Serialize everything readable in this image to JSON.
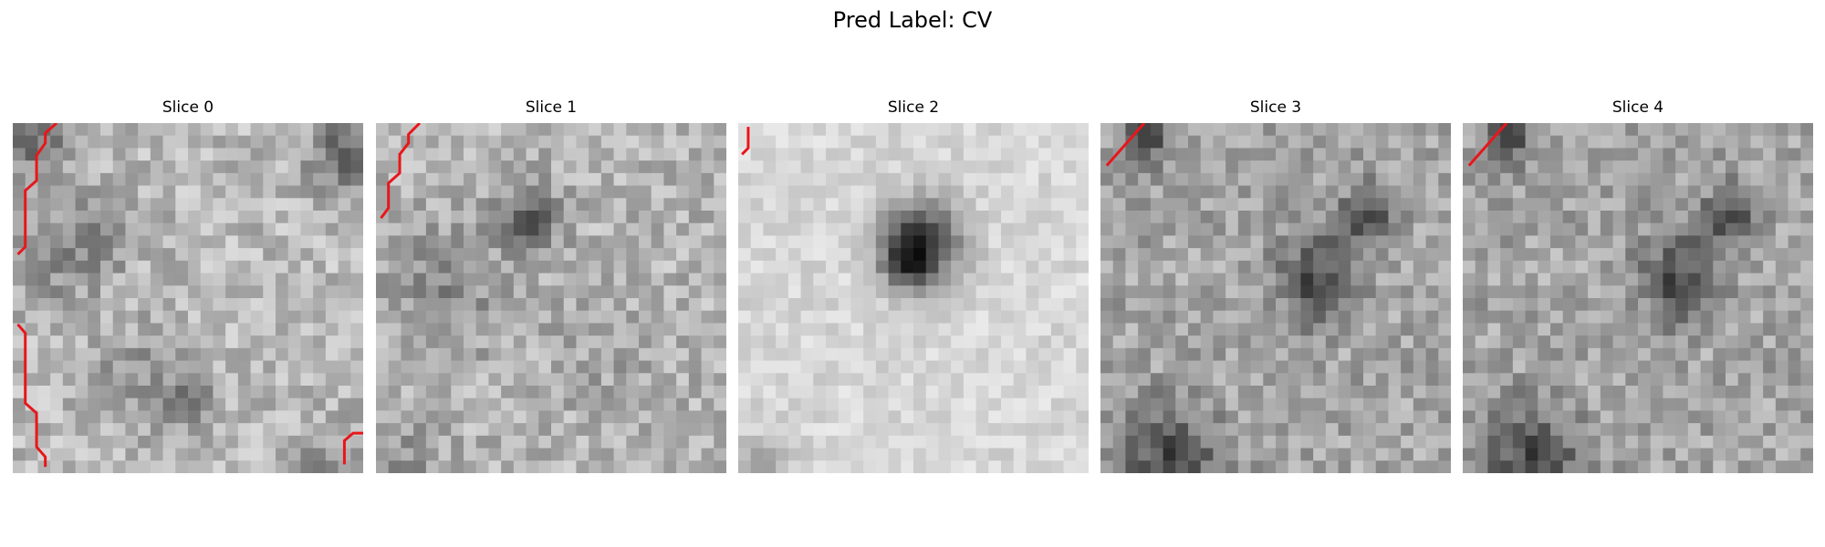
{
  "figure": {
    "title": "Pred Label: CV",
    "panels": [
      {
        "title": "Slice 0",
        "style": "mottled",
        "contour_color": "#e8161b"
      },
      {
        "title": "Slice 1",
        "style": "mid-blob",
        "contour_color": "#e8161b"
      },
      {
        "title": "Slice 2",
        "style": "dark-center",
        "contour_color": "#e8161b"
      },
      {
        "title": "Slice 3",
        "style": "right-blob",
        "contour_color": "#e8161b"
      },
      {
        "title": "Slice 4",
        "style": "right-blob",
        "contour_color": "#e8161b"
      }
    ],
    "colormap": "gray"
  }
}
